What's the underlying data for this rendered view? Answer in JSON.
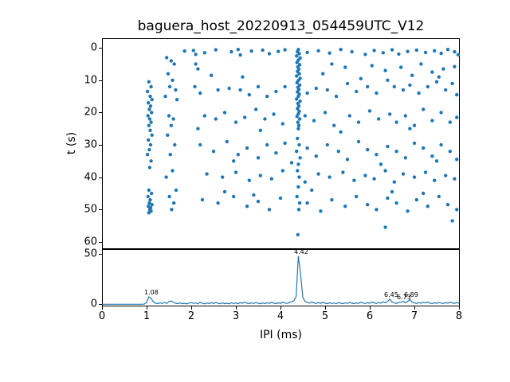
{
  "title": "baguera_host_20220913_054459UTC_V12",
  "scatter_plot": {
    "ylabel": "t (s)",
    "yticks": [
      "0",
      "10",
      "20",
      "30",
      "40",
      "50",
      "60"
    ]
  },
  "line_plot": {
    "xlabel": "IPI (ms)",
    "xticks": [
      "0",
      "1",
      "2",
      "3",
      "4",
      "5",
      "6",
      "7",
      "8"
    ],
    "yticks": [
      "0",
      "50"
    ]
  },
  "colors": {
    "series": "#1f77b4",
    "text": "#000000",
    "background": "#ffffff"
  },
  "chart_data": [
    {
      "type": "scatter",
      "title": "baguera_host_20220913_054459UTC_V12",
      "xlabel": "",
      "ylabel": "t (s)",
      "xlim": [
        0,
        8
      ],
      "ylim": [
        62,
        -3
      ],
      "y_inverted": true,
      "grid": false,
      "marker_color": "#1f77b4",
      "points": [
        [
          4.4,
          0.5
        ],
        [
          4.38,
          1.2
        ],
        [
          4.42,
          1.8
        ],
        [
          4.36,
          2.5
        ],
        [
          4.44,
          3.1
        ],
        [
          4.4,
          3.8
        ],
        [
          4.37,
          4.5
        ],
        [
          4.43,
          5.2
        ],
        [
          4.39,
          5.9
        ],
        [
          4.41,
          6.6
        ],
        [
          4.38,
          7.3
        ],
        [
          4.42,
          8.0
        ],
        [
          4.36,
          8.7
        ],
        [
          4.44,
          9.4
        ],
        [
          4.4,
          10.1
        ],
        [
          4.37,
          10.8
        ],
        [
          4.43,
          11.5
        ],
        [
          4.39,
          12.2
        ],
        [
          4.41,
          12.9
        ],
        [
          4.38,
          13.6
        ],
        [
          4.42,
          14.3
        ],
        [
          4.4,
          15.0
        ],
        [
          4.36,
          15.8
        ],
        [
          4.44,
          16.5
        ],
        [
          4.39,
          17.2
        ],
        [
          4.41,
          18.0
        ],
        [
          4.38,
          18.8
        ],
        [
          4.42,
          19.6
        ],
        [
          4.4,
          20.4
        ],
        [
          4.37,
          21.2
        ],
        [
          4.43,
          22.0
        ],
        [
          4.39,
          23.0
        ],
        [
          4.41,
          24.0
        ],
        [
          4.4,
          25.0
        ],
        [
          4.38,
          28.0
        ],
        [
          4.42,
          30.0
        ],
        [
          4.36,
          32.0
        ],
        [
          4.44,
          34.0
        ],
        [
          4.4,
          36.0
        ],
        [
          4.38,
          38.0
        ],
        [
          4.42,
          40.0
        ],
        [
          4.4,
          43.0
        ],
        [
          4.37,
          46.0
        ],
        [
          4.43,
          48.0
        ],
        [
          4.41,
          50.0
        ],
        [
          4.39,
          57.8
        ],
        [
          1.05,
          10.5
        ],
        [
          1.1,
          12
        ],
        [
          1.02,
          13.5
        ],
        [
          1.08,
          15
        ],
        [
          1.12,
          16
        ],
        [
          1.04,
          17
        ],
        [
          1.09,
          18
        ],
        [
          1.06,
          19
        ],
        [
          1.11,
          20
        ],
        [
          1.03,
          21
        ],
        [
          1.07,
          22
        ],
        [
          1.1,
          23
        ],
        [
          1.05,
          24
        ],
        [
          1.08,
          25.5
        ],
        [
          1.12,
          27
        ],
        [
          1.04,
          28.5
        ],
        [
          1.09,
          30
        ],
        [
          1.06,
          31.5
        ],
        [
          1.02,
          33
        ],
        [
          1.1,
          35
        ],
        [
          1.07,
          37
        ],
        [
          1.05,
          44
        ],
        [
          1.11,
          45
        ],
        [
          1.03,
          46
        ],
        [
          1.08,
          47
        ],
        [
          1.06,
          48
        ],
        [
          1.12,
          48.5
        ],
        [
          1.04,
          49
        ],
        [
          1.09,
          49.5
        ],
        [
          1.07,
          50
        ],
        [
          1.1,
          50.5
        ],
        [
          1.05,
          51
        ],
        [
          1.45,
          3
        ],
        [
          1.55,
          4
        ],
        [
          1.62,
          5
        ],
        [
          1.48,
          8
        ],
        [
          1.58,
          10
        ],
        [
          1.52,
          12
        ],
        [
          1.65,
          13
        ],
        [
          1.42,
          15
        ],
        [
          1.68,
          16
        ],
        [
          1.5,
          21
        ],
        [
          1.6,
          22
        ],
        [
          1.55,
          24
        ],
        [
          1.47,
          27
        ],
        [
          1.63,
          30
        ],
        [
          1.53,
          33
        ],
        [
          1.58,
          38
        ],
        [
          1.44,
          40
        ],
        [
          1.66,
          44
        ],
        [
          1.51,
          46
        ],
        [
          1.61,
          48
        ],
        [
          1.56,
          50
        ],
        [
          1.85,
          1
        ],
        [
          2.05,
          0.8
        ],
        [
          2.1,
          2
        ],
        [
          2.3,
          1.5
        ],
        [
          2.55,
          0.6
        ],
        [
          2.9,
          1.2
        ],
        [
          3.05,
          0.5
        ],
        [
          3.1,
          2.2
        ],
        [
          3.35,
          1.0
        ],
        [
          3.6,
          0.7
        ],
        [
          3.75,
          1.8
        ],
        [
          3.95,
          1.1
        ],
        [
          4.1,
          0.6
        ],
        [
          4.6,
          1.4
        ],
        [
          4.85,
          0.9
        ],
        [
          5.1,
          1.6
        ],
        [
          5.35,
          0.5
        ],
        [
          5.6,
          1.2
        ],
        [
          5.9,
          2.0
        ],
        [
          6.1,
          0.8
        ],
        [
          6.3,
          1.5
        ],
        [
          6.5,
          0.6
        ],
        [
          6.65,
          1.9
        ],
        [
          6.85,
          1.1
        ],
        [
          7.05,
          0.7
        ],
        [
          7.25,
          1.4
        ],
        [
          7.45,
          0.9
        ],
        [
          7.6,
          1.7
        ],
        [
          7.75,
          0.5
        ],
        [
          7.9,
          1.2
        ],
        [
          7.98,
          2.1
        ],
        [
          2.1,
          5
        ],
        [
          2.15,
          6.5
        ],
        [
          2.08,
          12
        ],
        [
          2.2,
          14
        ],
        [
          2.6,
          13
        ],
        [
          2.85,
          12.5
        ],
        [
          3.1,
          13
        ],
        [
          3.3,
          14.5
        ],
        [
          3.5,
          12
        ],
        [
          3.7,
          15
        ],
        [
          3.9,
          13.5
        ],
        [
          4.1,
          12
        ],
        [
          4.6,
          14
        ],
        [
          4.8,
          12.5
        ],
        [
          5.05,
          13
        ],
        [
          5.25,
          15
        ],
        [
          5.5,
          11
        ],
        [
          5.7,
          13.5
        ],
        [
          5.95,
          12
        ],
        [
          6.15,
          14
        ],
        [
          6.4,
          10
        ],
        [
          6.55,
          12
        ],
        [
          6.75,
          13
        ],
        [
          6.9,
          11.5
        ],
        [
          7.1,
          14
        ],
        [
          7.3,
          12
        ],
        [
          7.5,
          10.5
        ],
        [
          7.7,
          13
        ],
        [
          7.85,
          11
        ],
        [
          7.95,
          14.5
        ],
        [
          5.15,
          5
        ],
        [
          5.45,
          6
        ],
        [
          6.05,
          5.5
        ],
        [
          6.35,
          7
        ],
        [
          6.7,
          6
        ],
        [
          7.15,
          5
        ],
        [
          7.4,
          7.5
        ],
        [
          7.65,
          6.5
        ],
        [
          7.9,
          5.8
        ],
        [
          6.95,
          8.5
        ],
        [
          7.55,
          9
        ],
        [
          5.8,
          9.5
        ],
        [
          4.95,
          8
        ],
        [
          3.15,
          9
        ],
        [
          2.45,
          8.5
        ],
        [
          2.3,
          21
        ],
        [
          2.55,
          22
        ],
        [
          2.75,
          20
        ],
        [
          3.0,
          23
        ],
        [
          3.2,
          21.5
        ],
        [
          3.45,
          19
        ],
        [
          3.65,
          22
        ],
        [
          3.85,
          20.5
        ],
        [
          4.05,
          23.5
        ],
        [
          4.55,
          21
        ],
        [
          4.75,
          22.5
        ],
        [
          5.0,
          20
        ],
        [
          5.2,
          24
        ],
        [
          5.55,
          21
        ],
        [
          5.75,
          23
        ],
        [
          6.0,
          19.5
        ],
        [
          6.2,
          22
        ],
        [
          6.45,
          20.5
        ],
        [
          6.6,
          23
        ],
        [
          6.8,
          21
        ],
        [
          7.0,
          24
        ],
        [
          7.2,
          19
        ],
        [
          7.4,
          22.5
        ],
        [
          7.6,
          20
        ],
        [
          7.8,
          23
        ],
        [
          7.95,
          21.5
        ],
        [
          2.15,
          25
        ],
        [
          3.55,
          25.5
        ],
        [
          5.35,
          26
        ],
        [
          6.9,
          25
        ],
        [
          2.2,
          30
        ],
        [
          2.5,
          32
        ],
        [
          2.8,
          29
        ],
        [
          3.05,
          33
        ],
        [
          3.25,
          31
        ],
        [
          3.5,
          34
        ],
        [
          3.7,
          30
        ],
        [
          3.9,
          32.5
        ],
        [
          4.1,
          29.5
        ],
        [
          4.6,
          31
        ],
        [
          4.8,
          33.5
        ],
        [
          5.05,
          30
        ],
        [
          5.3,
          32
        ],
        [
          5.5,
          34.5
        ],
        [
          5.75,
          29
        ],
        [
          5.95,
          31.5
        ],
        [
          6.15,
          33
        ],
        [
          6.4,
          30.5
        ],
        [
          6.6,
          32
        ],
        [
          6.8,
          34
        ],
        [
          7.0,
          29.5
        ],
        [
          7.2,
          31
        ],
        [
          7.4,
          33.5
        ],
        [
          7.6,
          30
        ],
        [
          7.8,
          32
        ],
        [
          7.95,
          34.5
        ],
        [
          2.95,
          35
        ],
        [
          4.25,
          35.5
        ],
        [
          6.25,
          36
        ],
        [
          7.5,
          35
        ],
        [
          2.35,
          39
        ],
        [
          2.7,
          40
        ],
        [
          3.0,
          38.5
        ],
        [
          3.3,
          41
        ],
        [
          3.55,
          39.5
        ],
        [
          3.8,
          40.5
        ],
        [
          4.05,
          38
        ],
        [
          4.55,
          41.5
        ],
        [
          4.85,
          39
        ],
        [
          5.1,
          40
        ],
        [
          5.4,
          38.5
        ],
        [
          5.65,
          41
        ],
        [
          5.9,
          39.5
        ],
        [
          6.1,
          40.5
        ],
        [
          6.35,
          38
        ],
        [
          6.55,
          41.5
        ],
        [
          6.75,
          39
        ],
        [
          7.0,
          40
        ],
        [
          7.25,
          38.5
        ],
        [
          7.45,
          41
        ],
        [
          7.7,
          39.5
        ],
        [
          7.9,
          40.5
        ],
        [
          2.25,
          47
        ],
        [
          2.6,
          48
        ],
        [
          2.95,
          46
        ],
        [
          3.25,
          49
        ],
        [
          3.5,
          47.5
        ],
        [
          3.75,
          50
        ],
        [
          4.0,
          46.5
        ],
        [
          4.6,
          48
        ],
        [
          4.9,
          50.5
        ],
        [
          5.15,
          47
        ],
        [
          5.45,
          49
        ],
        [
          5.7,
          46
        ],
        [
          5.95,
          48.5
        ],
        [
          6.15,
          50
        ],
        [
          6.4,
          46.5
        ],
        [
          6.6,
          48
        ],
        [
          6.85,
          50.5
        ],
        [
          7.05,
          47
        ],
        [
          7.3,
          49
        ],
        [
          7.55,
          46
        ],
        [
          7.75,
          48.5
        ],
        [
          7.95,
          50
        ],
        [
          6.5,
          44.5
        ],
        [
          7.2,
          45
        ],
        [
          4.7,
          44
        ],
        [
          3.4,
          45.5
        ],
        [
          2.75,
          44.5
        ],
        [
          6.35,
          55.5
        ],
        [
          7.85,
          53.5
        ]
      ]
    },
    {
      "type": "line",
      "title": "",
      "xlabel": "IPI (ms)",
      "ylabel": "",
      "xlim": [
        0,
        8
      ],
      "ylim": [
        -2,
        55
      ],
      "grid": false,
      "line_color": "#1f77b4",
      "x_start": 0,
      "x_step": 0.05,
      "y": [
        0.1,
        0.1,
        0.1,
        0.1,
        0.1,
        0.1,
        0.1,
        0.1,
        0.1,
        0.1,
        0.1,
        0.1,
        0.1,
        0.1,
        0.1,
        0.1,
        0.1,
        0.1,
        0.1,
        0.3,
        2.0,
        7.5,
        6.0,
        2.5,
        1.2,
        0.8,
        1.5,
        0.9,
        1.8,
        1.0,
        2.8,
        3.5,
        2.0,
        1.2,
        0.8,
        1.4,
        0.7,
        1.1,
        0.6,
        1.3,
        1.8,
        0.9,
        1.5,
        0.7,
        2.2,
        1.0,
        0.6,
        1.4,
        0.8,
        1.7,
        0.9,
        2.0,
        1.1,
        0.7,
        1.5,
        0.8,
        1.2,
        0.6,
        1.6,
        0.9,
        1.3,
        0.7,
        1.8,
        1.0,
        2.4,
        1.2,
        0.8,
        1.5,
        0.9,
        1.9,
        1.1,
        0.7,
        1.4,
        0.8,
        1.7,
        1.0,
        2.1,
        1.2,
        0.8,
        1.6,
        1.0,
        2.3,
        1.3,
        0.9,
        1.8,
        2.6,
        3.5,
        8.0,
        48.0,
        30.0,
        7.0,
        3.0,
        2.0,
        1.2,
        2.5,
        1.4,
        0.9,
        1.8,
        1.0,
        2.2,
        1.2,
        0.8,
        1.6,
        0.9,
        1.4,
        0.7,
        1.9,
        1.1,
        0.8,
        1.5,
        0.9,
        2.0,
        1.2,
        0.8,
        1.6,
        1.0,
        2.2,
        1.3,
        0.9,
        1.7,
        1.1,
        2.4,
        1.4,
        1.0,
        1.8,
        1.2,
        2.6,
        1.6,
        2.8,
        5.2,
        2.4,
        1.5,
        1.0,
        1.8,
        2.2,
        3.0,
        1.6,
        2.8,
        4.8,
        2.2,
        1.4,
        1.0,
        1.8,
        1.2,
        2.0,
        1.4,
        2.4,
        1.2,
        0.9,
        1.6,
        1.1,
        1.9,
        1.3,
        0.9,
        1.7,
        1.2,
        2.1,
        1.4,
        1.0,
        1.8,
        1.2
      ],
      "annotations": [
        {
          "text": "1.08",
          "x": 1.08,
          "y": 7.5
        },
        {
          "text": "4.42",
          "x": 4.42,
          "y": 48
        },
        {
          "text": "6.45",
          "x": 6.45,
          "y": 5.2
        },
        {
          "text": "6.73",
          "x": 6.73,
          "y": 3.0
        },
        {
          "text": "6.89",
          "x": 6.89,
          "y": 4.8
        }
      ]
    }
  ]
}
